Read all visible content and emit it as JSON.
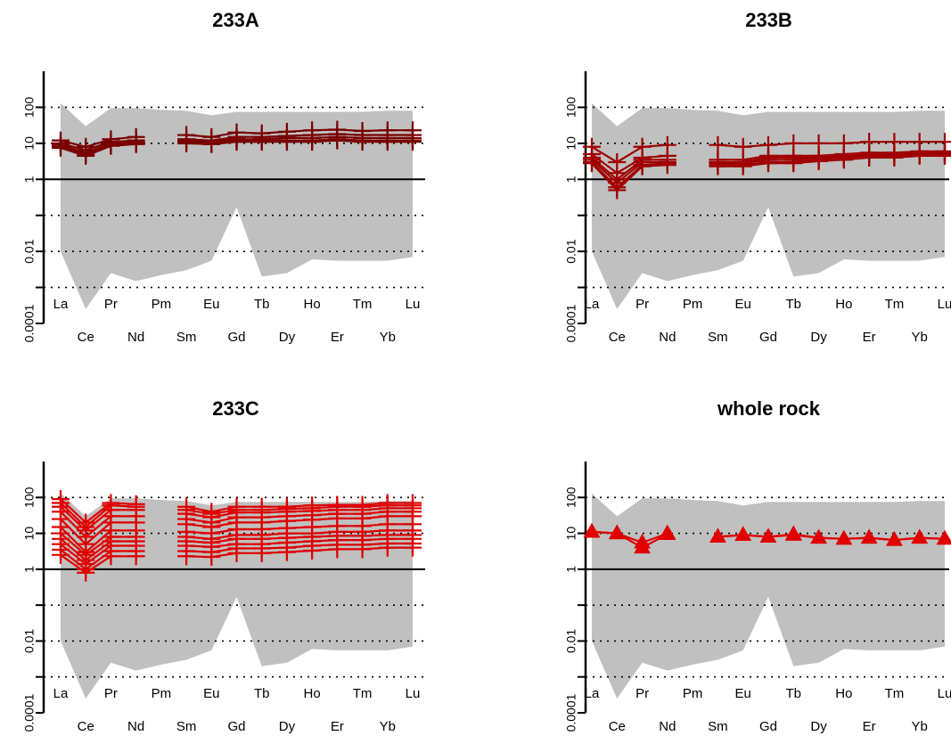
{
  "chart_data": [
    {
      "type": "line",
      "title": "233A",
      "scale": "log",
      "ylim": [
        0.0001,
        1000
      ],
      "yticks": [
        {
          "value": 0.0001,
          "label": "0.0001"
        },
        {
          "value": 0.001,
          "label": ""
        },
        {
          "value": 0.01,
          "label": "0.01"
        },
        {
          "value": 0.1,
          "label": ""
        },
        {
          "value": 1,
          "label": "1"
        },
        {
          "value": 10,
          "label": "10"
        },
        {
          "value": 100,
          "label": "100"
        }
      ],
      "elements": [
        "La",
        "Ce",
        "Pr",
        "Nd",
        "Pm",
        "Sm",
        "Eu",
        "Gd",
        "Tb",
        "Dy",
        "Ho",
        "Er",
        "Tm",
        "Yb",
        "Lu"
      ],
      "reference_line": 1,
      "grid": "dotted horizontal at each decade",
      "envelope": {
        "upper": [
          130,
          30,
          95,
          95,
          85,
          80,
          60,
          75,
          75,
          75,
          75,
          75,
          75,
          80,
          80
        ],
        "lower": [
          0.01,
          0.00025,
          0.0025,
          0.0015,
          0.0022,
          0.003,
          0.0055,
          0.17,
          0.002,
          0.0025,
          0.006,
          0.0055,
          0.0055,
          0.0055,
          0.007
        ],
        "color": "#c0c0c0"
      },
      "series_style": {
        "color": "#7a0000",
        "marker": "cross"
      },
      "series": [
        {
          "values": [
            12,
            8,
            13,
            15,
            null,
            17,
            15,
            20,
            19,
            21,
            23,
            24,
            22,
            23,
            23
          ]
        },
        {
          "values": [
            10,
            6.5,
            11,
            12,
            null,
            13,
            12,
            15,
            15,
            16,
            17,
            18,
            17,
            17,
            17
          ]
        },
        {
          "values": [
            9,
            5.5,
            10,
            11,
            null,
            12,
            11,
            13,
            13,
            14,
            14,
            15,
            14,
            14,
            14
          ]
        },
        {
          "values": [
            8,
            5,
            9,
            10,
            null,
            11,
            10,
            12,
            12,
            12,
            12,
            13,
            12,
            12,
            12
          ]
        },
        {
          "values": [
            7.5,
            4.5,
            8.5,
            9.5,
            null,
            10,
            9.5,
            11,
            11,
            11,
            11,
            12,
            11,
            11,
            11
          ]
        }
      ]
    },
    {
      "type": "line",
      "title": "233B",
      "scale": "log",
      "ylim": [
        0.0001,
        1000
      ],
      "yticks": [
        {
          "value": 0.0001,
          "label": "0.0001"
        },
        {
          "value": 0.001,
          "label": ""
        },
        {
          "value": 0.01,
          "label": "0.01"
        },
        {
          "value": 0.1,
          "label": ""
        },
        {
          "value": 1,
          "label": "1"
        },
        {
          "value": 10,
          "label": "10"
        },
        {
          "value": 100,
          "label": "100"
        }
      ],
      "elements": [
        "La",
        "Ce",
        "Pr",
        "Nd",
        "Pm",
        "Sm",
        "Eu",
        "Gd",
        "Tb",
        "Dy",
        "Ho",
        "Er",
        "Tm",
        "Yb",
        "Lu"
      ],
      "reference_line": 1,
      "grid": "dotted horizontal at each decade",
      "envelope": {
        "upper": [
          130,
          30,
          95,
          95,
          85,
          80,
          60,
          75,
          75,
          75,
          75,
          75,
          75,
          80,
          80
        ],
        "lower": [
          0.01,
          0.00025,
          0.0025,
          0.0015,
          0.0022,
          0.003,
          0.0055,
          0.17,
          0.002,
          0.0025,
          0.006,
          0.0055,
          0.0055,
          0.0055,
          0.007
        ],
        "color": "#c0c0c0"
      },
      "series_style": {
        "color": "#a00000",
        "marker": "cross"
      },
      "series": [
        {
          "values": [
            8,
            3,
            8,
            9,
            null,
            9,
            8,
            9,
            10,
            10,
            10,
            11,
            11,
            11,
            11
          ]
        },
        {
          "values": [
            5,
            1.5,
            4,
            4.5,
            null,
            3.5,
            3.5,
            4.5,
            4.5,
            4.5,
            5,
            5.5,
            5.5,
            6,
            6
          ]
        },
        {
          "values": [
            4,
            1.0,
            3.5,
            3.5,
            null,
            3,
            3,
            4,
            4,
            4,
            4.5,
            5,
            5,
            5.5,
            5.5
          ]
        },
        {
          "values": [
            3.5,
            0.8,
            3,
            3,
            null,
            2.8,
            2.8,
            3.5,
            3.5,
            3.8,
            4,
            4.5,
            4.5,
            5,
            5
          ]
        },
        {
          "values": [
            3,
            0.6,
            2.5,
            2.8,
            null,
            2.5,
            2.5,
            3,
            3,
            3.5,
            3.8,
            4.2,
            4.2,
            4.8,
            4.8
          ]
        },
        {
          "values": [
            2.8,
            0.5,
            2.3,
            2.5,
            null,
            2.3,
            2.3,
            2.8,
            2.8,
            3.2,
            3.5,
            4,
            4,
            4.5,
            4.5
          ]
        }
      ]
    },
    {
      "type": "line",
      "title": "233C",
      "scale": "log",
      "ylim": [
        0.0001,
        1000
      ],
      "yticks": [
        {
          "value": 0.0001,
          "label": "0.0001"
        },
        {
          "value": 0.001,
          "label": ""
        },
        {
          "value": 0.01,
          "label": "0.01"
        },
        {
          "value": 0.1,
          "label": ""
        },
        {
          "value": 1,
          "label": "1"
        },
        {
          "value": 10,
          "label": "10"
        },
        {
          "value": 100,
          "label": "100"
        }
      ],
      "elements": [
        "La",
        "Ce",
        "Pr",
        "Nd",
        "Pm",
        "Sm",
        "Eu",
        "Gd",
        "Tb",
        "Dy",
        "Ho",
        "Er",
        "Tm",
        "Yb",
        "Lu"
      ],
      "reference_line": 1,
      "grid": "dotted horizontal at each decade",
      "envelope": {
        "upper": [
          130,
          30,
          95,
          95,
          85,
          80,
          60,
          75,
          75,
          75,
          75,
          75,
          75,
          80,
          80
        ],
        "lower": [
          0.01,
          0.00025,
          0.0025,
          0.0015,
          0.0022,
          0.003,
          0.0055,
          0.17,
          0.002,
          0.0025,
          0.006,
          0.0055,
          0.0055,
          0.0055,
          0.007
        ],
        "color": "#c0c0c0"
      },
      "series_style": {
        "color": "#e00000",
        "marker": "cross"
      },
      "series": [
        {
          "values": [
            90,
            20,
            70,
            65,
            null,
            55,
            40,
            55,
            55,
            55,
            60,
            62,
            62,
            70,
            70
          ]
        },
        {
          "values": [
            70,
            15,
            60,
            55,
            null,
            45,
            35,
            45,
            45,
            48,
            50,
            55,
            55,
            60,
            60
          ]
        },
        {
          "values": [
            55,
            12,
            45,
            45,
            null,
            35,
            28,
            38,
            38,
            40,
            42,
            45,
            45,
            50,
            50
          ]
        },
        {
          "values": [
            40,
            8,
            30,
            30,
            null,
            25,
            20,
            28,
            28,
            30,
            32,
            35,
            35,
            40,
            40
          ]
        },
        {
          "values": [
            25,
            5,
            20,
            20,
            null,
            18,
            15,
            20,
            20,
            22,
            24,
            26,
            26,
            30,
            30
          ]
        },
        {
          "values": [
            15,
            3,
            12,
            12,
            null,
            11,
            10,
            13,
            13,
            14,
            15,
            16,
            16,
            18,
            18
          ]
        },
        {
          "values": [
            10,
            2.5,
            8,
            8,
            null,
            8,
            7,
            9,
            9,
            10,
            10,
            11,
            11,
            12,
            12
          ]
        },
        {
          "values": [
            7,
            1.8,
            6,
            6,
            null,
            6,
            5.5,
            7,
            7,
            7.5,
            8,
            8.5,
            8.5,
            9,
            9
          ]
        },
        {
          "values": [
            5,
            1.4,
            4.5,
            4.5,
            null,
            4.5,
            4.2,
            5,
            5,
            5.5,
            6,
            6.5,
            6.5,
            7,
            7
          ]
        },
        {
          "values": [
            3.5,
            1.0,
            3.2,
            3.2,
            null,
            3.2,
            3,
            3.8,
            3.8,
            4,
            4.5,
            4.8,
            4.8,
            5.2,
            5.2
          ]
        },
        {
          "values": [
            2.5,
            0.8,
            2.3,
            2.3,
            null,
            2.3,
            2.2,
            2.8,
            2.8,
            3,
            3.3,
            3.6,
            3.6,
            4,
            4
          ]
        }
      ]
    },
    {
      "type": "line",
      "title": "whole rock",
      "scale": "log",
      "ylim": [
        0.0001,
        1000
      ],
      "yticks": [
        {
          "value": 0.0001,
          "label": "0.0001"
        },
        {
          "value": 0.001,
          "label": ""
        },
        {
          "value": 0.01,
          "label": "0.01"
        },
        {
          "value": 0.1,
          "label": ""
        },
        {
          "value": 1,
          "label": "1"
        },
        {
          "value": 10,
          "label": "10"
        },
        {
          "value": 100,
          "label": "100"
        }
      ],
      "elements": [
        "La",
        "Ce",
        "Pr",
        "Nd",
        "Pm",
        "Sm",
        "Eu",
        "Gd",
        "Tb",
        "Dy",
        "Ho",
        "Er",
        "Tm",
        "Yb",
        "Lu"
      ],
      "reference_line": 1,
      "grid": "dotted horizontal at each decade",
      "envelope": {
        "upper": [
          130,
          30,
          95,
          95,
          85,
          80,
          60,
          75,
          75,
          75,
          75,
          75,
          75,
          80,
          80
        ],
        "lower": [
          0.01,
          0.00025,
          0.0025,
          0.0015,
          0.0022,
          0.003,
          0.0055,
          0.17,
          0.002,
          0.0025,
          0.006,
          0.0055,
          0.0055,
          0.0055,
          0.007
        ],
        "color": "#c0c0c0"
      },
      "series_style": {
        "color": "#e00000",
        "marker": "triangle"
      },
      "series": [
        {
          "values": [
            11,
            10,
            5.5,
            10,
            null,
            8,
            9,
            8,
            9,
            7.5,
            7,
            7.5,
            6.5,
            7.5,
            7
          ]
        },
        {
          "values": [
            11,
            10,
            4,
            9.5,
            null,
            8,
            9,
            8,
            9.5,
            7.5,
            7,
            7.5,
            6.5,
            7.5,
            7
          ]
        }
      ]
    }
  ]
}
